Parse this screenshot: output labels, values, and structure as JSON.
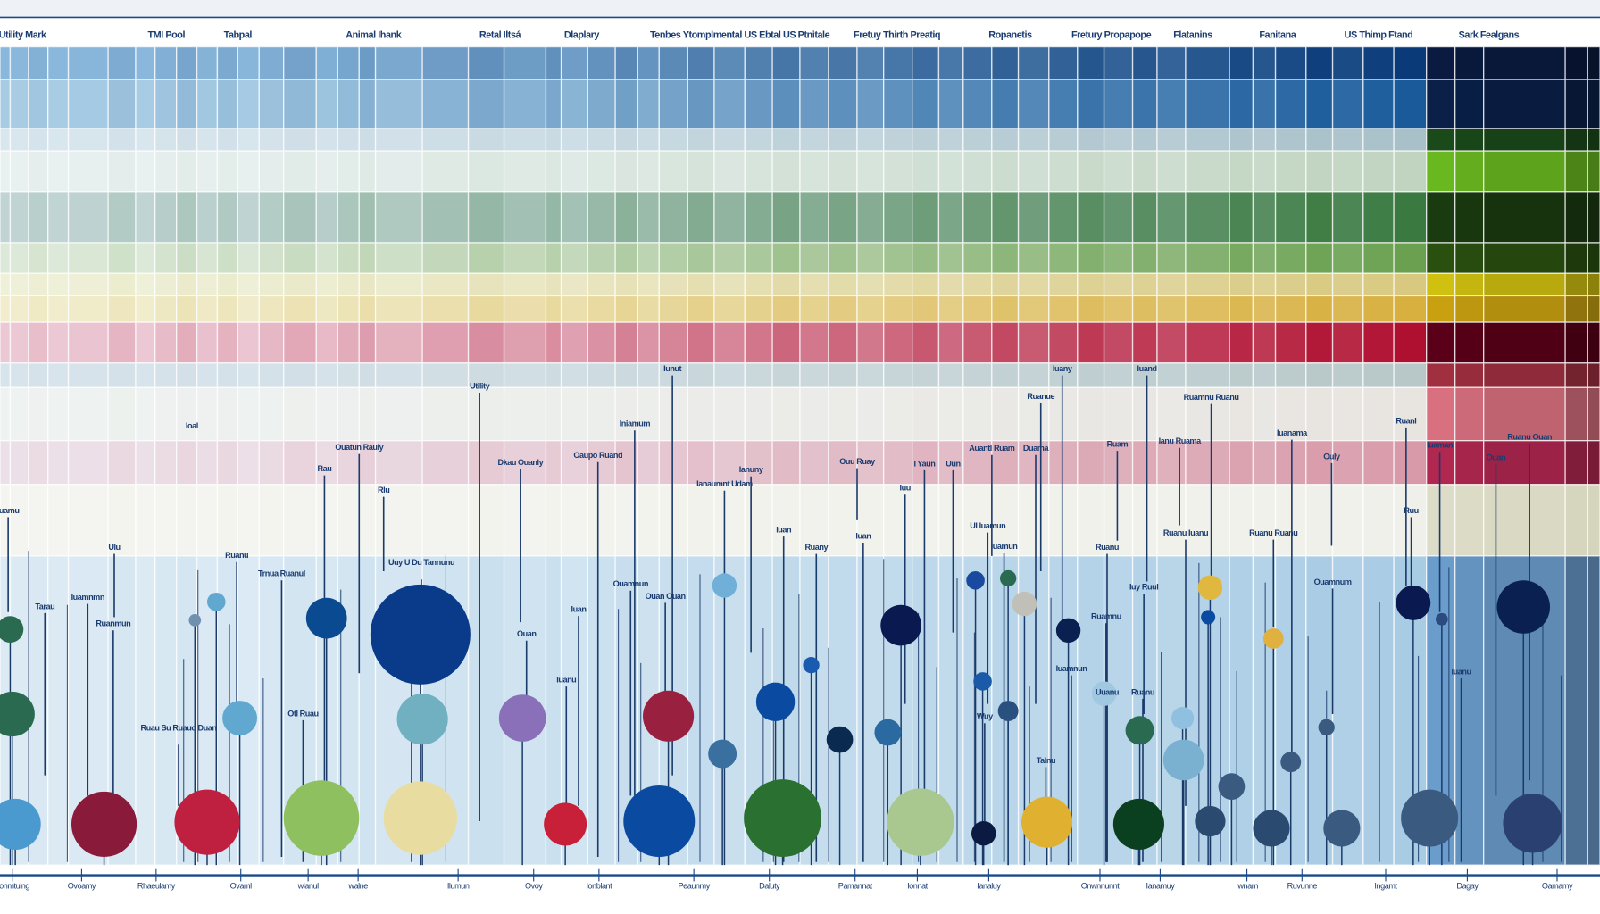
{
  "chart_data": {
    "type": "heatmap",
    "column_headers": [
      "Utility Mark",
      "TMI Pool",
      "Tabpal",
      "Animal Ihank",
      "Retal Iltsá",
      "Dlaplary",
      "Tenbes Ytomplmental US Ebtal US Ptnitale",
      "Fretuy Thirth Preatiq",
      "Ropanetis",
      "Fretury Propapope",
      "Flatanins",
      "Fanitana",
      "US Thimp Ftand",
      "Sark Fealgans"
    ],
    "x_tick_labels": [
      "Ironmtuing",
      "Ovoamy",
      "Rhaeulamy",
      "Ovaml",
      "wlanul",
      "walne",
      "Ilumun",
      "Ovoy",
      "Ionblant",
      "Peaunmy",
      "Daluty",
      "Pamannat",
      "Ionnat",
      "Ianaluy",
      "Onwnnunnt",
      "Ianamuy",
      "Iwnam",
      "Ruvunne",
      "Ingamt",
      "Dagay",
      "Oamamy"
    ],
    "row_band_colors": [
      [
        "#8ab8dc",
        "#0a3a78",
        "#0a1a40"
      ],
      [
        "#a8cce4",
        "#1a5a9a",
        "#0a2048"
      ],
      [
        "#d8e6ee",
        "#a8c0c8",
        "#1a4a1a"
      ],
      [
        "#e8f0f0",
        "#c0d4c0",
        "#6ab820"
      ],
      [
        "#c0d4d4",
        "#3a7a40",
        "#1a3a10"
      ],
      [
        "#dce8d8",
        "#6aa050",
        "#2a5010"
      ],
      [
        "#eef0d8",
        "#d8c880",
        "#d0c010"
      ],
      [
        "#f0eccc",
        "#d8b040",
        "#c8a010"
      ],
      [
        "#ecc8d4",
        "#b01030",
        "#5a0018"
      ],
      [
        "#d8e4ec",
        "#b8c8c8",
        "#a03040"
      ],
      [
        "#eef2f0",
        "#e8e4e0",
        "#d87080"
      ],
      [
        "#ece0e8",
        "#d89aa8",
        "#b02850"
      ],
      [
        "#f4f4f0",
        "#f0f0ea",
        "#dcdcc8"
      ],
      [
        "#dceaf4",
        "#a8cce4",
        "#6a9ccc"
      ]
    ],
    "annotations": [
      "Utility",
      "Ioal",
      "Ouatun Rauiy",
      "Rau",
      "Dkau Ouanly",
      "Oaupo Ruand",
      "Iniamum",
      "Iunut",
      "Ianaumnt Udam",
      "Ianuny",
      "Ouu Ruay",
      "I Yaun",
      "Uun",
      "Auantl Ruam",
      "Duama",
      "Ruanue",
      "Iuany",
      "Iuand",
      "Ruam",
      "Ianu Ruama",
      "Ruamnu Ruanu",
      "Iuanama",
      "Ouly",
      "Ruanl",
      "Iuaman",
      "Ouan",
      "Ruanu Ouan",
      "Iuamu",
      "Ulu",
      "Tarau",
      "Iuamnmn",
      "Ruanmun",
      "Ruanu",
      "Trnua Ruanul",
      "Uuy U Du Tannunu",
      "Rlu",
      "Ouamnun",
      "Ouan Ouan",
      "Iuan",
      "Ouan",
      "Iuanu",
      "Iuan",
      "Ruany",
      "Iuan",
      "Iuu",
      "Ul Iuamun",
      "Iuamun",
      "Ruanu",
      "Ruanu Iuanu",
      "Ruanu Ruanu",
      "Ouamnum",
      "Iuy Ruul",
      "Ruamnu",
      "Iuamnun",
      "Uuanu",
      "Ruanu",
      "Talnu",
      "Wuy",
      "Iuanu",
      "Ruu",
      "Ruau Su Ruauo Duan",
      "Otl Ruau"
    ],
    "bubble_colors_note_free": true,
    "bubble_colors": [
      "#4a9ad0",
      "#8a1a3a",
      "#c02040",
      "#8ec060",
      "#e8dca0",
      "#c82038",
      "#0a4aa0",
      "#2a7030",
      "#a8c890",
      "#0a1a40",
      "#e0b030",
      "#0a4020",
      "#2a4a70",
      "#2a4a70",
      "#3a5a80",
      "#3a5a80",
      "#2a4070",
      "#2a6a50",
      "#2a6a50",
      "#60a8d0",
      "#60a8d0",
      "#7090b0",
      "#0a4a90",
      "#0a3a8a",
      "#70b0c0",
      "#8a70b8",
      "#9a2040",
      "#70b0d8",
      "#3a70a0",
      "#0a4aa0",
      "#1a5ab0",
      "#0a2a50",
      "#2a6aa0",
      "#0a1a50",
      "#1a4aa0",
      "#1a5aa8",
      "#2a5080",
      "#2a6a50",
      "#c0c0b8",
      "#0a2050",
      "#2a6a50",
      "#7ab0d0",
      "#90c0e0",
      "#e0b840",
      "#0a4aa0",
      "#3a5a80",
      "#e0b040",
      "#3a5a80",
      "#3a5a80",
      "#0a1a50",
      "#2a4a80",
      "#0a2050",
      "#a0c8e0"
    ]
  }
}
